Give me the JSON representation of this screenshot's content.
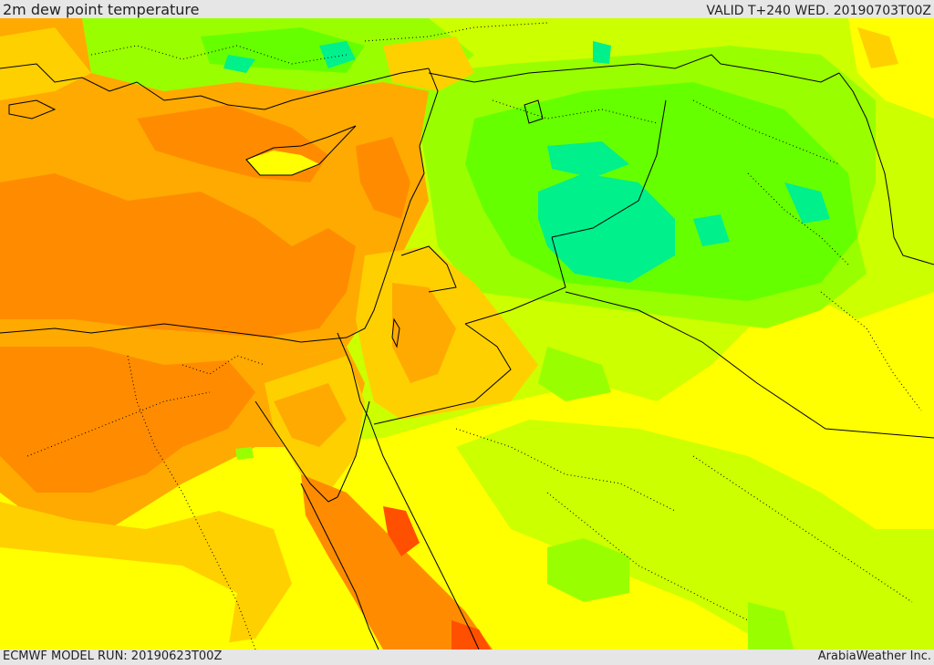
{
  "header": {
    "title": "2m dew point temperature",
    "valid": "VALID T+240 WED. 20190703T00Z"
  },
  "footer": {
    "model_run": "ECMWF MODEL RUN: 20190623T00Z",
    "credit": "ArabiaWeather Inc."
  },
  "colors": {
    "field_orange": "#ff8c00",
    "field_light_orange": "#ffaa00",
    "field_gold": "#ffd000",
    "field_yellow": "#ffff00",
    "field_yellow_green": "#ccff00",
    "field_light_green": "#99ff00",
    "field_green": "#66ff00",
    "field_teal": "#00f08c",
    "field_deep_orange": "#ff5000",
    "border_line": "#000000"
  }
}
